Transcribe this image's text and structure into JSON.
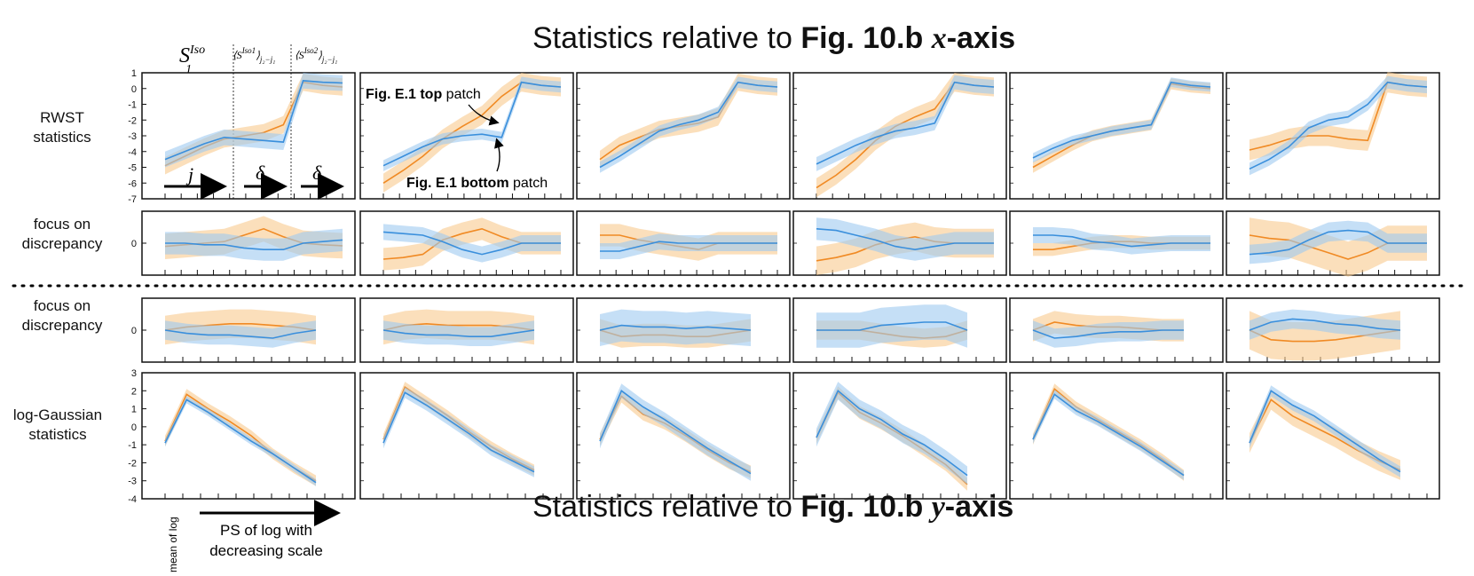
{
  "titles": {
    "top_prefix": "Statistics relative to ",
    "top_bold": "Fig. 10.b ",
    "top_axis": "x",
    "top_suffix": "-axis",
    "bottom_prefix": "Statistics relative to ",
    "bottom_bold": "Fig. 10.b ",
    "bottom_axis": "y",
    "bottom_suffix": "-axis"
  },
  "row_labels": {
    "rwst_1": "RWST",
    "rwst_2": "statistics",
    "focus_1": "focus on",
    "focus_2": "discrepancy",
    "loggauss_1": "log-Gaussian",
    "loggauss_2": "statistics"
  },
  "header_labels": {
    "s1": "S₁^Iso",
    "s2a": "⟨S₂^Iso1⟩j₂−j₁",
    "s2b": "⟨S₂^Iso2⟩j₂−j₁"
  },
  "arrows": {
    "j": "j",
    "delta1": "δ",
    "delta2": "δ"
  },
  "annotations": {
    "top_bold": "Fig. E.1 top",
    "top_rest": " patch",
    "bottom_bold": "Fig. E.1 bottom",
    "bottom_rest": " patch"
  },
  "bottom_axis_labels": {
    "mean_of_log": "mean of log",
    "ps_1": "PS of log with",
    "ps_2": "decreasing scale"
  },
  "colors": {
    "blue": "#3a8fdc",
    "orange": "#f08a24",
    "blue_fill": "#9fcaf0",
    "orange_fill": "#f8c98e"
  },
  "chart_data": [
    {
      "type": "line",
      "name": "RWST statistics (x-axis)",
      "x": [
        0,
        1,
        2,
        3,
        4,
        5,
        6,
        7,
        8,
        9
      ],
      "ylim": [
        -7,
        1
      ],
      "yticks": [
        1,
        0,
        -1,
        -2,
        -3,
        -4,
        -5,
        -6,
        -7
      ],
      "panels": [
        {
          "blue": [
            -4.5,
            -4.0,
            -3.5,
            -3.1,
            -3.2,
            -3.3,
            -3.4,
            0.5,
            0.4,
            0.35
          ],
          "blue_band": 0.5,
          "orange": [
            -4.9,
            -4.3,
            -3.7,
            -3.2,
            -3.0,
            -2.8,
            -2.3,
            0.4,
            0.2,
            0.1
          ],
          "orange_band": 0.55
        },
        {
          "blue": [
            -4.9,
            -4.3,
            -3.7,
            -3.2,
            -3.0,
            -2.9,
            -3.1,
            0.4,
            0.2,
            0.1
          ],
          "blue_band": 0.35,
          "orange": [
            -6.0,
            -5.2,
            -4.3,
            -3.2,
            -2.4,
            -1.7,
            -0.5,
            0.4,
            0.2,
            0.1
          ],
          "orange_band": 0.6
        },
        {
          "blue": [
            -5.0,
            -4.3,
            -3.5,
            -2.7,
            -2.3,
            -2.0,
            -1.5,
            0.4,
            0.2,
            0.1
          ],
          "blue_band": 0.35,
          "orange": [
            -4.5,
            -3.6,
            -3.1,
            -2.6,
            -2.4,
            -2.2,
            -1.8,
            0.4,
            0.2,
            0.1
          ],
          "orange_band": 0.55
        },
        {
          "blue": [
            -4.8,
            -4.2,
            -3.6,
            -3.1,
            -2.7,
            -2.5,
            -2.2,
            0.4,
            0.2,
            0.1
          ],
          "blue_band": 0.45,
          "orange": [
            -6.3,
            -5.5,
            -4.5,
            -3.3,
            -2.4,
            -1.8,
            -1.3,
            0.4,
            0.2,
            0.1
          ],
          "orange_band": 0.6
        },
        {
          "blue": [
            -4.4,
            -3.8,
            -3.3,
            -3.0,
            -2.7,
            -2.5,
            -2.3,
            0.4,
            0.2,
            0.1
          ],
          "blue_band": 0.3,
          "orange": [
            -5.0,
            -4.3,
            -3.6,
            -3.0,
            -2.7,
            -2.5,
            -2.3,
            0.3,
            0.1,
            0.0
          ],
          "orange_band": 0.35
        },
        {
          "blue": [
            -5.1,
            -4.5,
            -3.7,
            -2.5,
            -2.0,
            -1.8,
            -1.0,
            0.4,
            0.2,
            0.1
          ],
          "blue_band": 0.4,
          "orange": [
            -3.9,
            -3.6,
            -3.2,
            -3.0,
            -3.0,
            -3.2,
            -3.3,
            0.4,
            0.2,
            0.1
          ],
          "orange_band": 0.65
        }
      ]
    },
    {
      "type": "area",
      "name": "focus on discrepancy (x-axis)",
      "x": [
        0,
        1,
        2,
        3,
        4,
        5,
        6,
        7,
        8,
        9
      ],
      "ylim": [
        -1,
        1
      ],
      "yticks": [
        0
      ],
      "panels": [
        {
          "blue": [
            0.0,
            0.0,
            -0.05,
            -0.05,
            -0.15,
            -0.2,
            -0.2,
            0.0,
            0.05,
            0.1
          ],
          "blue_band": 0.35,
          "orange": [
            -0.1,
            -0.05,
            0.0,
            0.05,
            0.25,
            0.45,
            0.2,
            0.0,
            -0.05,
            -0.08
          ],
          "orange_band": 0.4
        },
        {
          "blue": [
            0.35,
            0.3,
            0.25,
            0.05,
            -0.2,
            -0.35,
            -0.2,
            0.0,
            0.0,
            0.0
          ],
          "blue_band": 0.25,
          "orange": [
            -0.5,
            -0.45,
            -0.35,
            0.1,
            0.3,
            0.45,
            0.2,
            0.0,
            0.0,
            0.0
          ],
          "orange_band": 0.35
        },
        {
          "blue": [
            -0.25,
            -0.25,
            -0.1,
            0.05,
            0.0,
            0.0,
            0.0,
            0.0,
            0.0,
            0.0
          ],
          "blue_band": 0.25,
          "orange": [
            0.25,
            0.25,
            0.1,
            0.0,
            -0.1,
            -0.2,
            0.0,
            0.0,
            0.0,
            0.0
          ],
          "orange_band": 0.35
        },
        {
          "blue": [
            0.45,
            0.4,
            0.25,
            0.1,
            -0.1,
            -0.2,
            -0.1,
            0.0,
            0.0,
            0.0
          ],
          "blue_band": 0.35,
          "orange": [
            -0.55,
            -0.45,
            -0.3,
            -0.05,
            0.1,
            0.2,
            0.05,
            0.0,
            0.0,
            0.0
          ],
          "orange_band": 0.45
        },
        {
          "blue": [
            0.25,
            0.25,
            0.2,
            0.05,
            0.0,
            -0.1,
            -0.05,
            0.0,
            0.0,
            0.0
          ],
          "blue_band": 0.25,
          "orange": [
            -0.2,
            -0.2,
            -0.1,
            0.0,
            0.05,
            0.05,
            0.0,
            0.0,
            0.0,
            0.0
          ],
          "orange_band": 0.2
        },
        {
          "blue": [
            -0.35,
            -0.3,
            -0.2,
            0.1,
            0.35,
            0.4,
            0.35,
            0.0,
            0.0,
            0.0
          ],
          "blue_band": 0.3,
          "orange": [
            0.25,
            0.15,
            0.1,
            -0.1,
            -0.3,
            -0.5,
            -0.3,
            0.0,
            0.0,
            0.0
          ],
          "orange_band": 0.55
        }
      ]
    },
    {
      "type": "area",
      "name": "focus on discrepancy (y-axis)",
      "x": [
        0,
        1,
        2,
        3,
        4,
        5,
        6,
        7
      ],
      "ylim": [
        -1,
        1
      ],
      "yticks": [
        0
      ],
      "panels": [
        {
          "blue": [
            0.0,
            -0.1,
            -0.15,
            -0.15,
            -0.2,
            -0.25,
            -0.1,
            0.0
          ],
          "blue_band": 0.3,
          "orange": [
            0.0,
            0.1,
            0.15,
            0.2,
            0.2,
            0.15,
            0.1,
            0.0
          ],
          "orange_band": 0.45
        },
        {
          "blue": [
            0.0,
            -0.1,
            -0.15,
            -0.15,
            -0.2,
            -0.2,
            -0.1,
            0.0
          ],
          "blue_band": 0.3,
          "orange": [
            0.0,
            0.15,
            0.2,
            0.15,
            0.15,
            0.15,
            0.1,
            0.0
          ],
          "orange_band": 0.45
        },
        {
          "blue": [
            0.0,
            0.15,
            0.1,
            0.1,
            0.05,
            0.1,
            0.05,
            0.0
          ],
          "blue_band": 0.5,
          "orange": [
            0.0,
            -0.2,
            -0.15,
            -0.15,
            -0.2,
            -0.2,
            -0.1,
            0.0
          ],
          "orange_band": 0.35
        },
        {
          "blue": [
            0.0,
            0.0,
            0.0,
            0.15,
            0.2,
            0.25,
            0.25,
            0.0
          ],
          "blue_band": 0.55,
          "orange": [
            0.0,
            0.0,
            0.0,
            -0.1,
            -0.2,
            -0.25,
            -0.2,
            0.0
          ],
          "orange_band": 0.3
        },
        {
          "blue": [
            0.0,
            -0.25,
            -0.2,
            -0.1,
            -0.05,
            -0.05,
            0.0,
            0.0
          ],
          "blue_band": 0.3,
          "orange": [
            0.0,
            0.25,
            0.15,
            0.1,
            0.1,
            0.05,
            0.0,
            0.0
          ],
          "orange_band": 0.35
        },
        {
          "blue": [
            0.0,
            0.25,
            0.35,
            0.3,
            0.2,
            0.15,
            0.05,
            0.0
          ],
          "blue_band": 0.3,
          "orange": [
            0.0,
            -0.3,
            -0.35,
            -0.35,
            -0.3,
            -0.2,
            -0.1,
            0.0
          ],
          "orange_band": 0.6
        }
      ]
    },
    {
      "type": "line",
      "name": "log-Gaussian statistics (y-axis)",
      "x": [
        0,
        1,
        2,
        3,
        4,
        5,
        6,
        7
      ],
      "ylim": [
        -4,
        3
      ],
      "yticks": [
        3,
        2,
        1,
        0,
        -1,
        -2,
        -3,
        -4
      ],
      "panels": [
        {
          "blue": [
            -0.9,
            1.5,
            0.8,
            0.0,
            -0.8,
            -1.5,
            -2.3,
            -3.1
          ],
          "blue_band": 0.2,
          "orange": [
            -0.8,
            1.8,
            1.0,
            0.3,
            -0.5,
            -1.5,
            -2.3,
            -3.0
          ],
          "orange_band": 0.3
        },
        {
          "blue": [
            -0.9,
            1.9,
            1.2,
            0.4,
            -0.4,
            -1.3,
            -1.9,
            -2.5
          ],
          "blue_band": 0.3,
          "orange": [
            -0.7,
            2.2,
            1.4,
            0.6,
            -0.3,
            -1.1,
            -1.8,
            -2.4
          ],
          "orange_band": 0.3
        },
        {
          "blue": [
            -0.8,
            2.0,
            1.1,
            0.4,
            -0.4,
            -1.2,
            -1.9,
            -2.6
          ],
          "blue_band": 0.4,
          "orange": [
            -0.7,
            1.7,
            0.7,
            0.2,
            -0.5,
            -1.3,
            -2.0,
            -2.5
          ],
          "orange_band": 0.35
        },
        {
          "blue": [
            -0.6,
            2.0,
            1.0,
            0.4,
            -0.4,
            -1.0,
            -1.8,
            -2.7
          ],
          "blue_band": 0.5,
          "orange": [
            -0.6,
            1.9,
            0.8,
            0.2,
            -0.5,
            -1.3,
            -2.1,
            -3.2
          ],
          "orange_band": 0.35
        },
        {
          "blue": [
            -0.7,
            1.8,
            0.9,
            0.3,
            -0.4,
            -1.1,
            -1.9,
            -2.7
          ],
          "blue_band": 0.25,
          "orange": [
            -0.7,
            2.1,
            1.1,
            0.4,
            -0.3,
            -1.0,
            -1.8,
            -2.7
          ],
          "orange_band": 0.3
        },
        {
          "blue": [
            -0.9,
            2.0,
            1.2,
            0.6,
            -0.2,
            -1.0,
            -1.8,
            -2.5
          ],
          "blue_band": 0.3,
          "orange": [
            -0.9,
            1.5,
            0.6,
            0.0,
            -0.6,
            -1.3,
            -1.9,
            -2.4
          ],
          "orange_band": 0.55
        }
      ]
    }
  ]
}
